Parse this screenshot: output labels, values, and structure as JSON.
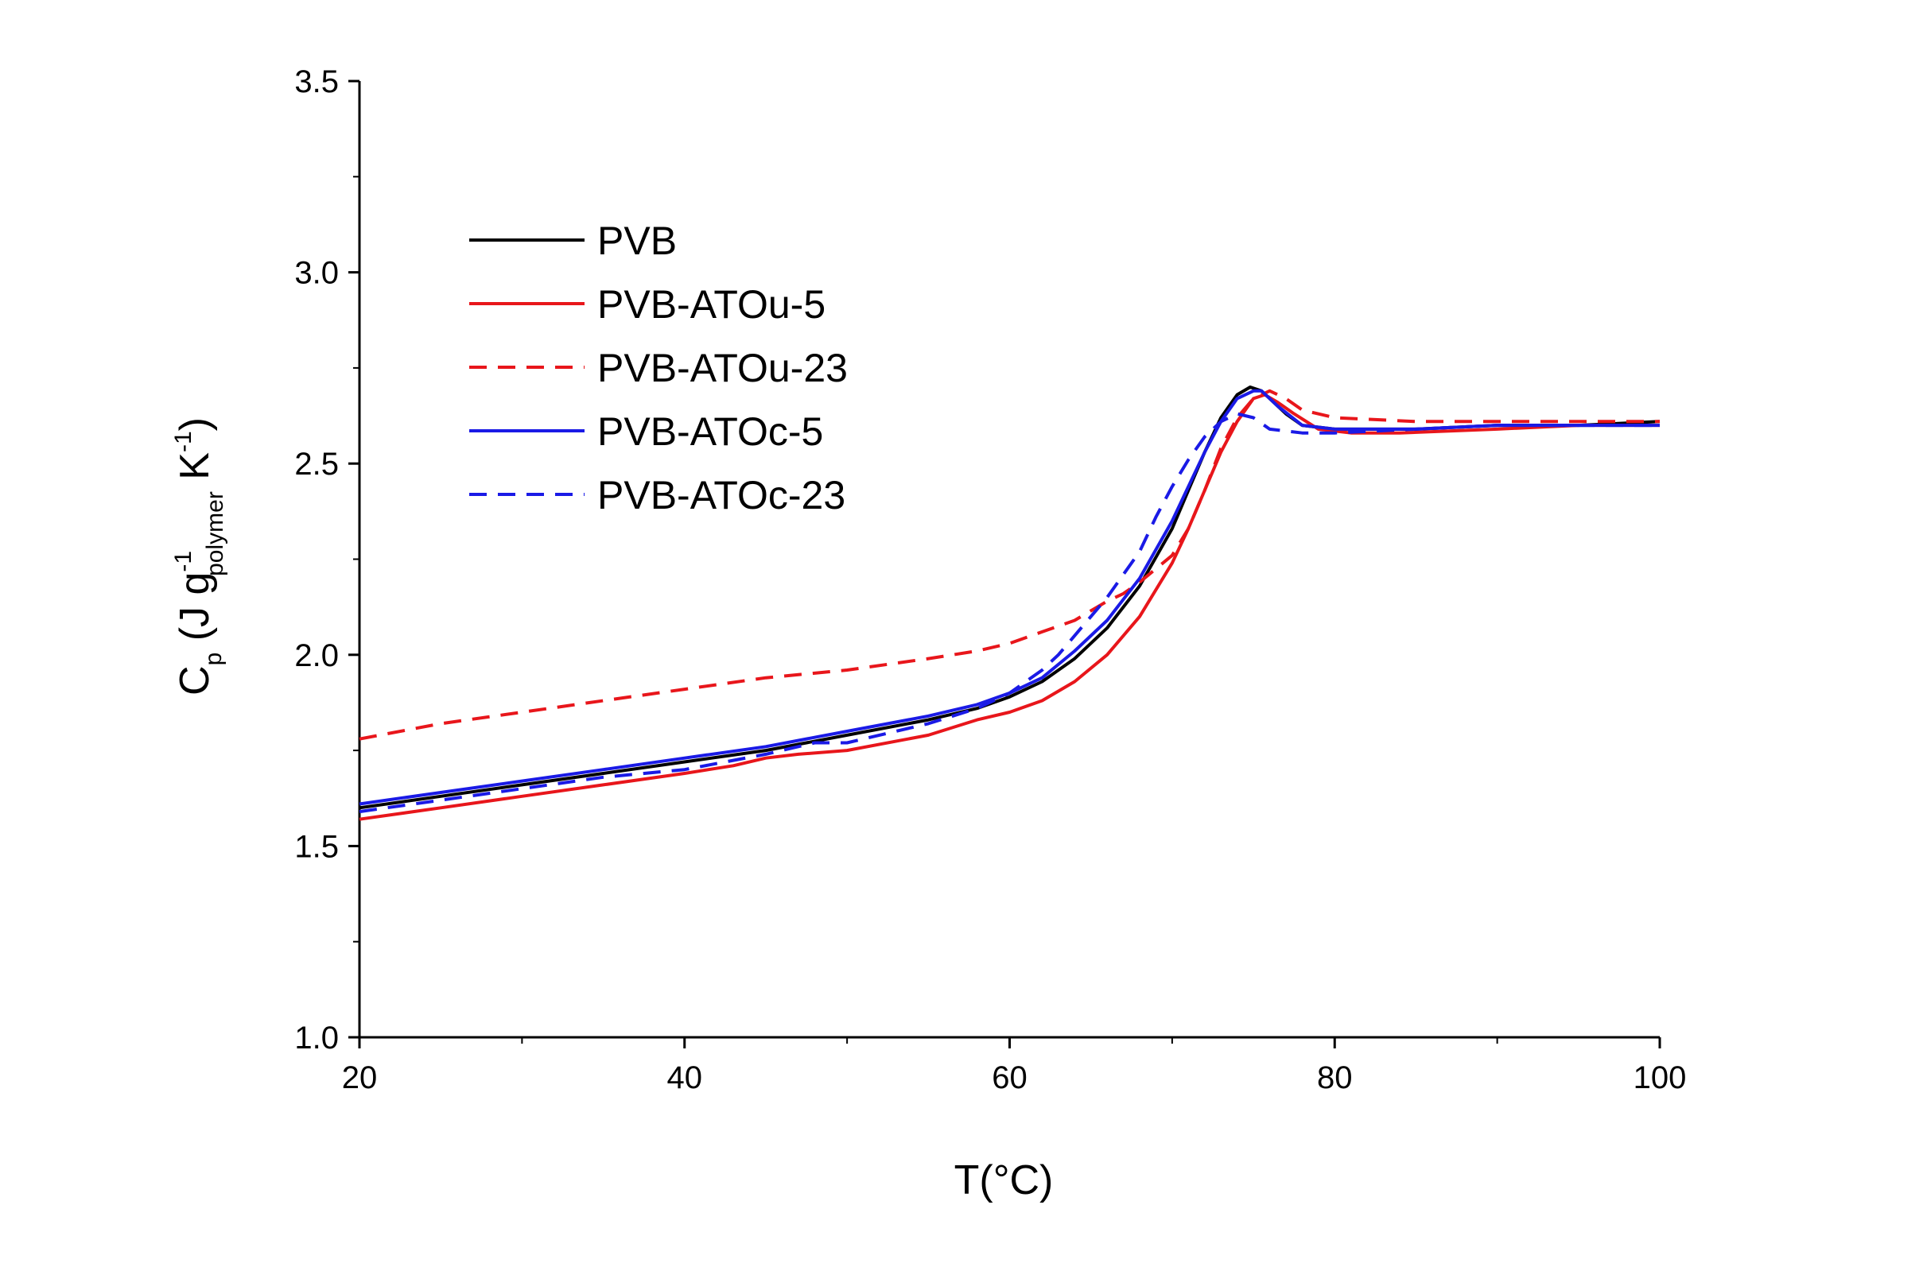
{
  "chart_data": {
    "type": "line",
    "title": "",
    "xlabel": "T(°C)",
    "ylabel": {
      "main": "C",
      "sub_main": "p",
      "open": " (J g",
      "sup_g": "-1",
      "sub_g": "polymer",
      "k": " K",
      "sup_k": "-1",
      "close": ")"
    },
    "xlim": [
      20,
      100
    ],
    "ylim": [
      1.0,
      3.5
    ],
    "xticks": [
      20,
      40,
      60,
      80,
      100
    ],
    "xtick_labels": [
      "20",
      "40",
      "60",
      "80",
      "100"
    ],
    "yticks": [
      1.0,
      1.5,
      2.0,
      2.5,
      3.0,
      3.5
    ],
    "ytick_labels": [
      "1.0",
      "1.5",
      "2.0",
      "2.5",
      "3.0",
      "3.5"
    ],
    "grid": false,
    "legend_position": "upper-left",
    "series": [
      {
        "name": "PVB",
        "color": "#000000",
        "dash": "solid",
        "x": [
          20,
          25,
          30,
          35,
          40,
          45,
          50,
          55,
          58,
          60,
          62,
          64,
          66,
          68,
          70,
          71,
          72,
          73,
          74,
          74.8,
          75.5,
          76,
          77,
          78,
          80,
          82,
          85,
          90,
          95,
          100
        ],
        "y": [
          1.6,
          1.63,
          1.66,
          1.69,
          1.72,
          1.75,
          1.79,
          1.83,
          1.86,
          1.89,
          1.93,
          1.99,
          2.07,
          2.18,
          2.33,
          2.43,
          2.53,
          2.62,
          2.68,
          2.7,
          2.69,
          2.67,
          2.63,
          2.6,
          2.59,
          2.59,
          2.59,
          2.6,
          2.6,
          2.61
        ]
      },
      {
        "name": "PVB-ATOu-5",
        "color": "#e8161b",
        "dash": "solid",
        "x": [
          20,
          25,
          30,
          35,
          40,
          43,
          45,
          47,
          50,
          55,
          58,
          60,
          62,
          64,
          66,
          68,
          70,
          71,
          72,
          73,
          74,
          75,
          75.7,
          76.5,
          77.5,
          79,
          81,
          84,
          90,
          95,
          100
        ],
        "y": [
          1.57,
          1.6,
          1.63,
          1.66,
          1.69,
          1.71,
          1.73,
          1.74,
          1.75,
          1.79,
          1.83,
          1.85,
          1.88,
          1.93,
          2.0,
          2.1,
          2.24,
          2.33,
          2.43,
          2.53,
          2.61,
          2.67,
          2.68,
          2.66,
          2.63,
          2.59,
          2.58,
          2.58,
          2.59,
          2.6,
          2.6
        ]
      },
      {
        "name": "PVB-ATOu-23",
        "color": "#e8161b",
        "dash": "dashed",
        "x": [
          20,
          25,
          30,
          35,
          40,
          45,
          50,
          55,
          58,
          60,
          62,
          64,
          66,
          67,
          68,
          70,
          71,
          72,
          73,
          74,
          75,
          76,
          77,
          78,
          80,
          85,
          90,
          95,
          100
        ],
        "y": [
          1.78,
          1.82,
          1.85,
          1.88,
          1.91,
          1.94,
          1.96,
          1.99,
          2.01,
          2.03,
          2.06,
          2.09,
          2.14,
          2.16,
          2.19,
          2.26,
          2.33,
          2.43,
          2.54,
          2.62,
          2.67,
          2.69,
          2.67,
          2.64,
          2.62,
          2.61,
          2.61,
          2.61,
          2.61
        ]
      },
      {
        "name": "PVB-ATOc-5",
        "color": "#1a1ae6",
        "dash": "solid",
        "x": [
          20,
          25,
          30,
          35,
          40,
          45,
          50,
          55,
          58,
          60,
          62,
          64,
          66,
          68,
          70,
          71,
          72,
          73,
          74,
          75,
          75.5,
          76.5,
          78,
          80,
          85,
          90,
          95,
          100
        ],
        "y": [
          1.61,
          1.64,
          1.67,
          1.7,
          1.73,
          1.76,
          1.8,
          1.84,
          1.87,
          1.9,
          1.94,
          2.01,
          2.09,
          2.2,
          2.35,
          2.44,
          2.53,
          2.61,
          2.67,
          2.69,
          2.69,
          2.65,
          2.6,
          2.59,
          2.59,
          2.6,
          2.6,
          2.6
        ]
      },
      {
        "name": "PVB-ATOc-23",
        "color": "#1a1ae6",
        "dash": "dashed",
        "x": [
          20,
          25,
          30,
          35,
          40,
          45,
          48,
          50,
          55,
          58,
          60,
          62,
          63,
          64,
          66,
          68,
          69,
          70,
          71,
          72,
          73,
          74,
          75,
          76,
          78,
          80,
          85,
          90,
          95,
          100
        ],
        "y": [
          1.59,
          1.62,
          1.65,
          1.68,
          1.7,
          1.74,
          1.77,
          1.77,
          1.82,
          1.86,
          1.9,
          1.96,
          2.0,
          2.05,
          2.15,
          2.27,
          2.36,
          2.44,
          2.51,
          2.57,
          2.61,
          2.63,
          2.62,
          2.59,
          2.58,
          2.58,
          2.59,
          2.6,
          2.6,
          2.6
        ]
      }
    ]
  }
}
